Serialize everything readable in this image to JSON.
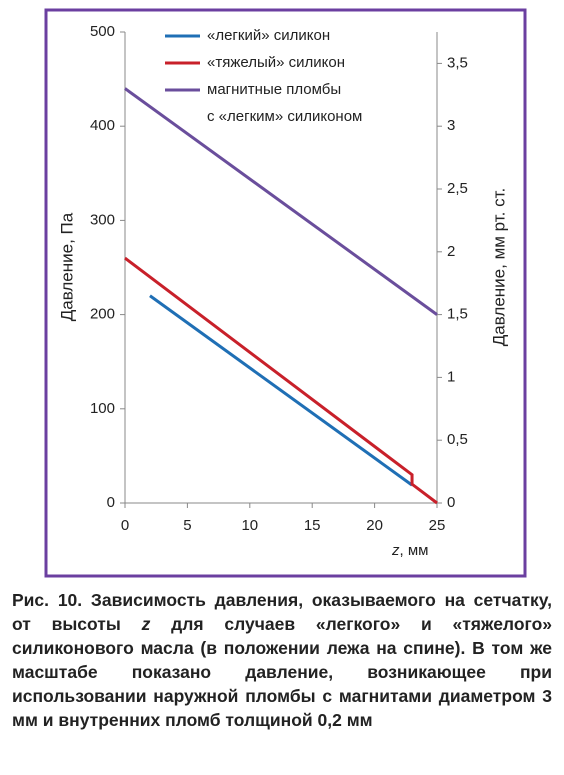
{
  "chart_data": {
    "type": "line",
    "ylabel": "Давление, Па",
    "y2label": "Давление, мм рт. ст.",
    "xlabel_var": "z",
    "xlabel_unit": ", мм",
    "xlim": [
      0,
      25
    ],
    "xticks": [
      0,
      5,
      10,
      15,
      20,
      25
    ],
    "ylim": [
      0,
      500
    ],
    "yticks": [
      0,
      100,
      200,
      300,
      400,
      500
    ],
    "y2lim": [
      0,
      3.75
    ],
    "y2ticks": [
      0,
      {
        "value": 0.5,
        "label": "0,5"
      },
      1,
      {
        "value": 1.5,
        "label": "1,5"
      },
      2,
      {
        "value": 2.5,
        "label": "2,5"
      },
      3,
      {
        "value": 3.5,
        "label": "3,5"
      }
    ],
    "legend": "top",
    "series": [
      {
        "name": "«легкий» силикон",
        "color": "#1f6fb5",
        "x": [
          2,
          23
        ],
        "values": [
          220,
          19
        ]
      },
      {
        "name": "«тяжелый» силикон",
        "color": "#c8202a",
        "x": [
          0,
          23,
          23,
          25
        ],
        "values": [
          260,
          30,
          20,
          0
        ]
      },
      {
        "name": "магнитные пломбы\nс «легким» силиконом",
        "color": "#6a4e9c",
        "x": [
          0,
          25
        ],
        "values": [
          440,
          200
        ]
      }
    ]
  },
  "caption": [
    "Рис. 10. Зависимость давления, оказываемого на сетчатку, от высоты ",
    "z",
    " для случаев «легкого» и «тяжелого» силиконового масла (в положении лежа на спине). В том же масштабе показано давление, возникающее при использовании наружной пломбы с магнитами диаметром 3 мм и внутренних пломб толщиной 0,2 мм"
  ]
}
